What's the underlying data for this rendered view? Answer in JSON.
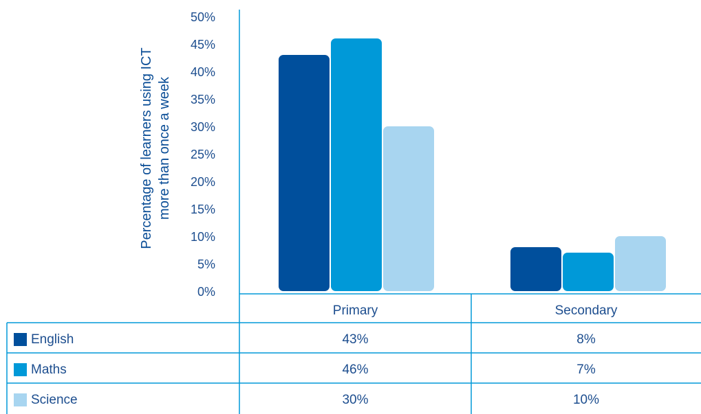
{
  "chart_data": {
    "type": "bar",
    "title": "",
    "xlabel": "",
    "ylabel": [
      "Percentage of learners using ICT",
      "more than once a week"
    ],
    "categories": [
      "Primary",
      "Secondary"
    ],
    "ylim": [
      0,
      50
    ],
    "yticks": [
      "0%",
      "5%",
      "10%",
      "15%",
      "20%",
      "25%",
      "30%",
      "35%",
      "40%",
      "45%",
      "50%"
    ],
    "series": [
      {
        "name": "English",
        "values": [
          43,
          8
        ],
        "labels": [
          "43%",
          "8%"
        ],
        "color": "#004f9c"
      },
      {
        "name": "Maths",
        "values": [
          46,
          7
        ],
        "labels": [
          "46%",
          "7%"
        ],
        "color": "#0099d8"
      },
      {
        "name": "Science",
        "values": [
          30,
          10
        ],
        "labels": [
          "30%",
          "10%"
        ],
        "color": "#a8d5f0"
      }
    ],
    "legend": "data-table",
    "grid": false
  },
  "colors": {
    "axis": "#0099d8",
    "text": "#1d4e8f"
  }
}
